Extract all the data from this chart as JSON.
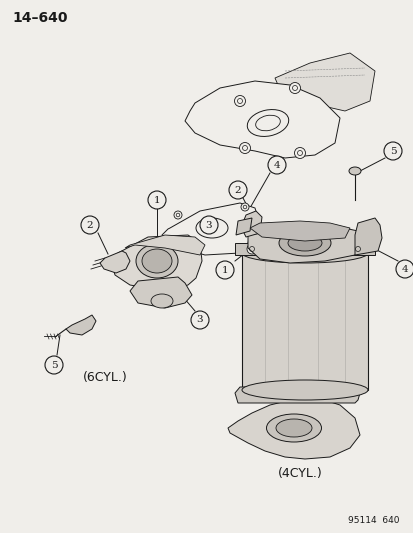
{
  "title": "14–640",
  "background_color": "#f0eeea",
  "line_color": "#1a1a1a",
  "label_6cyl": "(6CYL.)",
  "label_4cyl": "(4CYL.)",
  "footer": "95114  640",
  "fig_width": 4.14,
  "fig_height": 5.33,
  "dpi": 100
}
